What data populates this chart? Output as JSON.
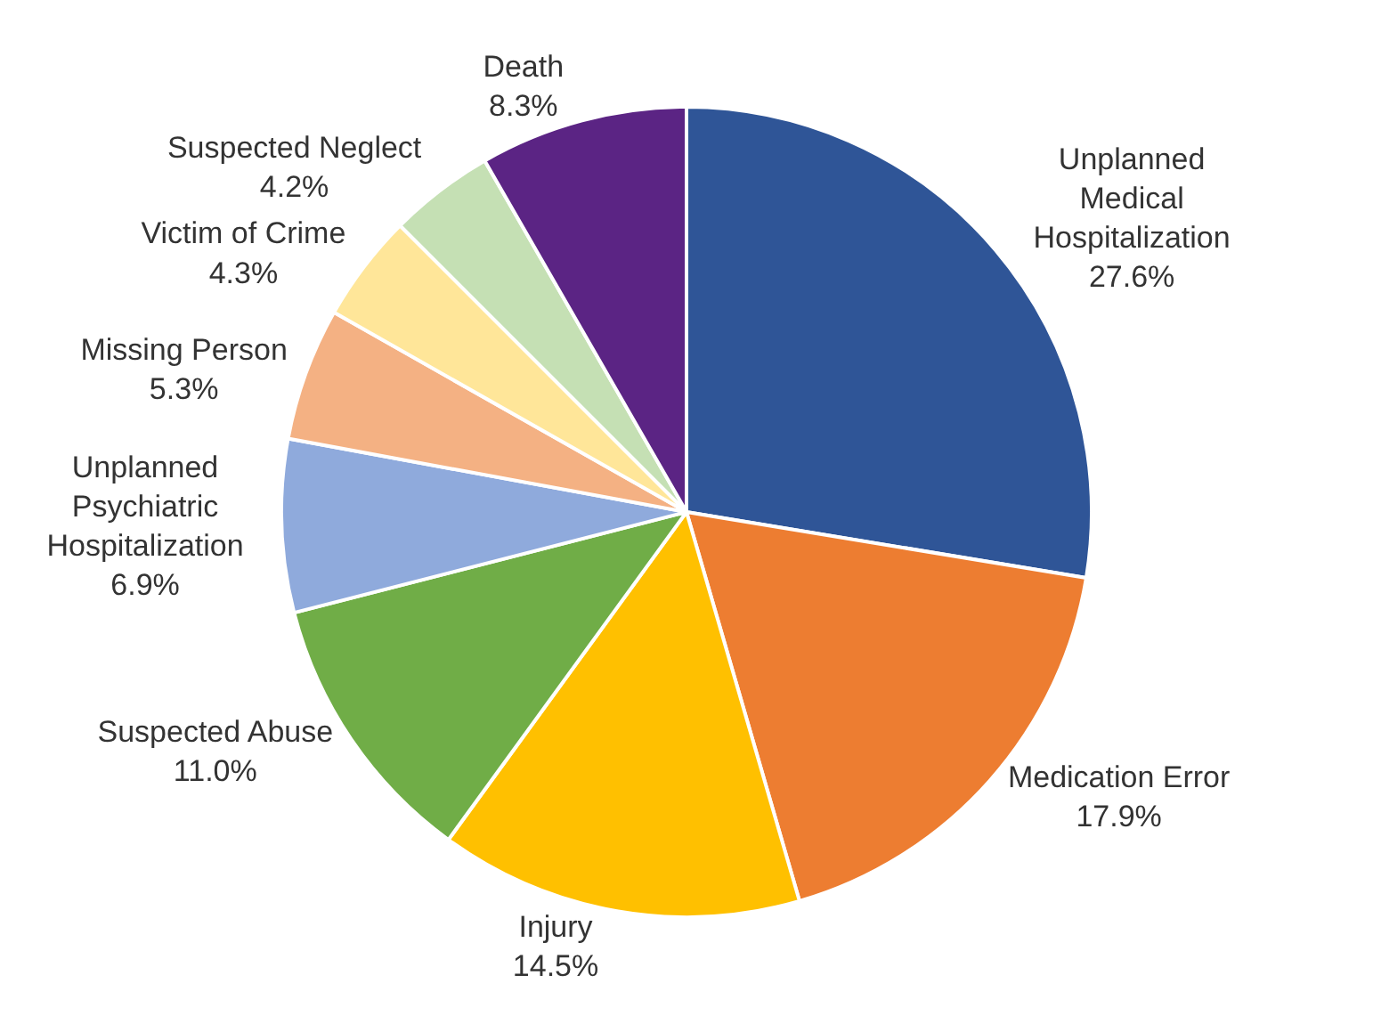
{
  "chart_data": {
    "type": "pie",
    "categories": [
      "Unplanned Medical Hospitalization",
      "Medication Error",
      "Injury",
      "Suspected Abuse",
      "Unplanned Psychiatric Hospitalization",
      "Missing Person",
      "Victim of Crime",
      "Suspected Neglect",
      "Death"
    ],
    "values": [
      27.6,
      17.9,
      14.5,
      11.0,
      6.9,
      5.3,
      4.3,
      4.2,
      8.3
    ],
    "value_labels": [
      "27.6%",
      "17.9%",
      "14.5%",
      "11.0%",
      "6.9%",
      "5.3%",
      "4.3%",
      "4.2%",
      "8.3%"
    ],
    "colors": [
      "#2f5597",
      "#ed7d31",
      "#ffc000",
      "#70ad47",
      "#8faadc",
      "#f4b183",
      "#ffe699",
      "#c5e0b4",
      "#5b2484"
    ],
    "legend": false
  }
}
